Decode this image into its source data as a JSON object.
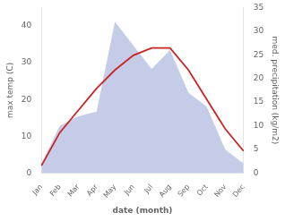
{
  "chart_data": {
    "type": "line",
    "categories": [
      "Jan",
      "Feb",
      "Mar",
      "Apr",
      "May",
      "Jun",
      "Jul",
      "Aug",
      "Sep",
      "Oct",
      "Nov",
      "Dec"
    ],
    "series": [
      {
        "type": "area",
        "axis": "y2",
        "color": "#c5cce8",
        "values": [
          2,
          10,
          12,
          13,
          32,
          27,
          22,
          26,
          17,
          14,
          5,
          2
        ]
      },
      {
        "type": "line",
        "color": "#cc2222",
        "values": [
          2,
          11,
          17,
          23,
          28,
          32,
          34,
          34,
          28,
          20,
          12,
          6
        ]
      }
    ],
    "xlabel": "date (month)",
    "ylabel": "max temp (C)",
    "y2label": "med. precipitation (kg/m2)",
    "ylim": [
      0,
      45
    ],
    "yticks": [
      0,
      10,
      20,
      30,
      40
    ],
    "y2lim": [
      0,
      35
    ],
    "y2ticks": [
      0,
      5,
      10,
      15,
      20,
      25,
      30,
      35
    ],
    "grid": false
  }
}
